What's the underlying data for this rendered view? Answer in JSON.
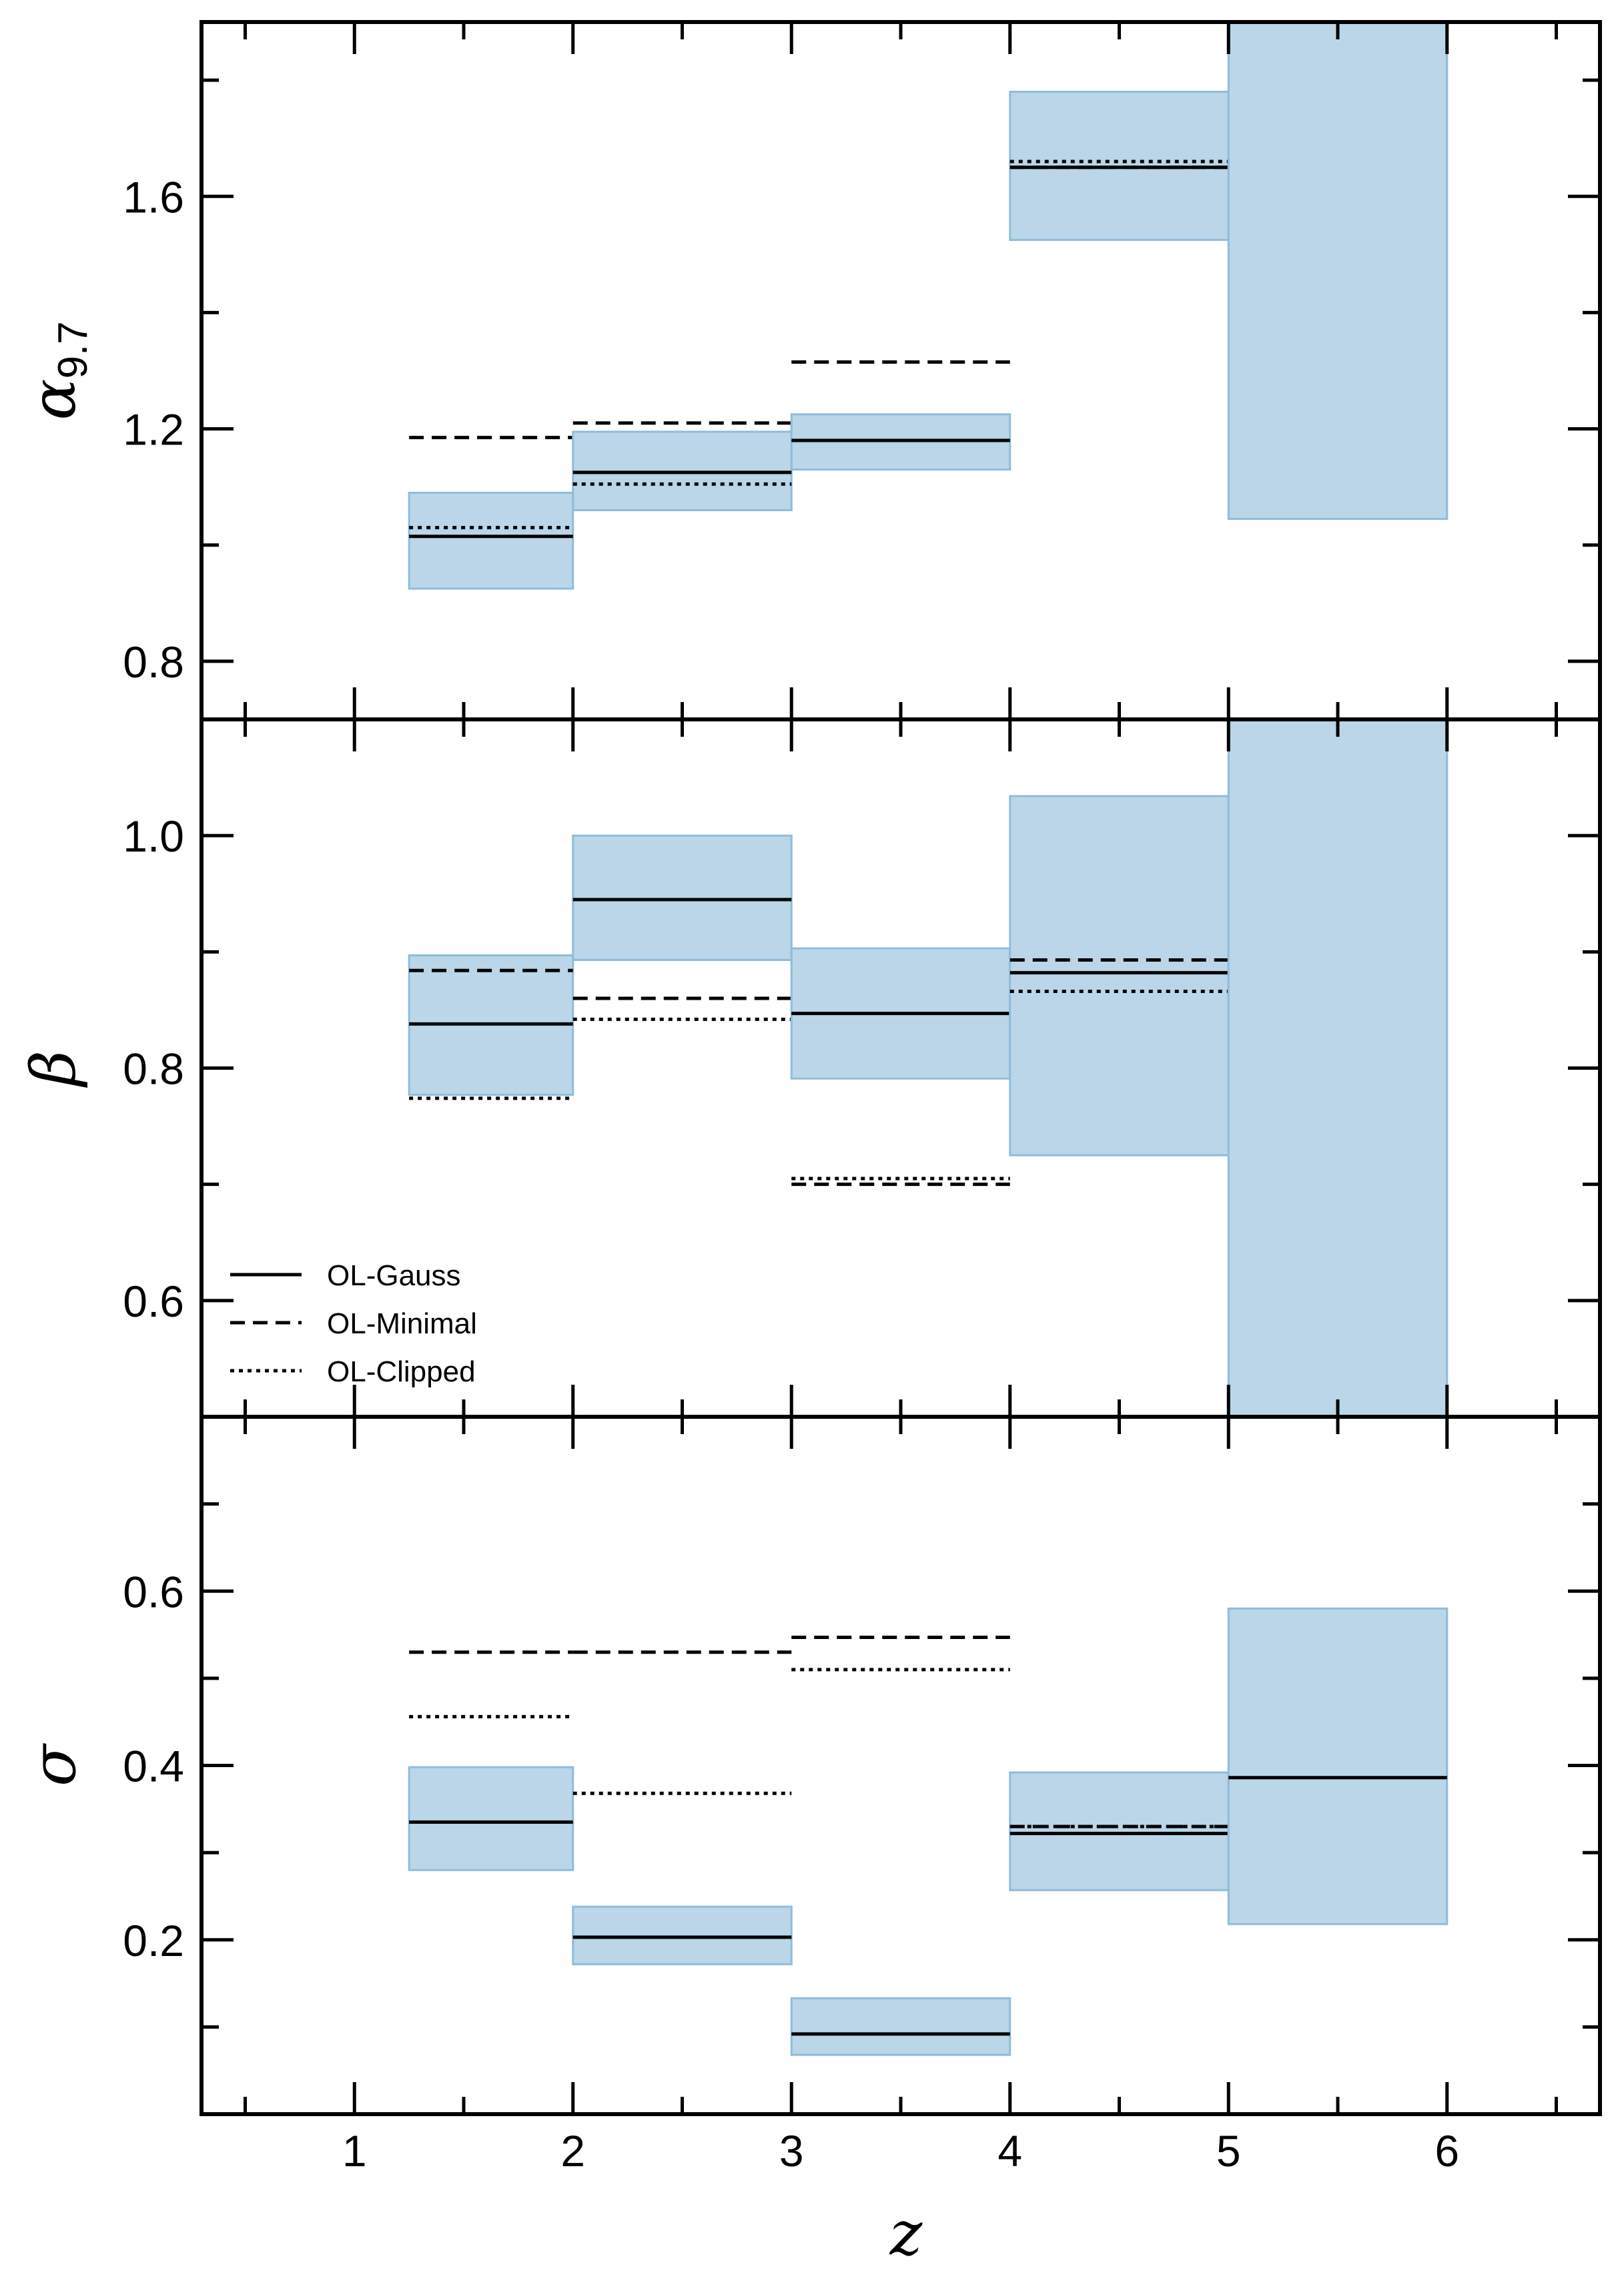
{
  "chart_data": {
    "type": "step",
    "xlabel": "z",
    "xlim": [
      0.3,
      6.7
    ],
    "x_ticks": [
      1,
      2,
      3,
      4,
      5,
      6
    ],
    "colors": {
      "band_fill": "#bad6e8",
      "band_edge": "#8fbcdb",
      "line": "#000000"
    },
    "legend": {
      "placement": "lower-left of middle panel",
      "entries": [
        {
          "label": "OL-Gauss",
          "style": "solid"
        },
        {
          "label": "OL-Minimal",
          "style": "dashed"
        },
        {
          "label": "OL-Clipped",
          "style": "dotted"
        }
      ]
    },
    "panels": [
      {
        "ylabel": "α",
        "ylabel_sub": "9.7",
        "ylim": [
          0.7,
          1.9
        ],
        "y_ticks": [
          0.8,
          1.2,
          1.6
        ],
        "y_tick_labels": [
          "0.8",
          "1.2",
          "1.6"
        ],
        "bins": [
          {
            "x0": 1.25,
            "x1": 2,
            "lo": 0.925,
            "hi": 1.09,
            "gauss": 1.015,
            "minimal": 1.185,
            "clipped": 1.03
          },
          {
            "x0": 2,
            "x1": 3,
            "lo": 1.06,
            "hi": 1.195,
            "gauss": 1.125,
            "minimal": 1.21,
            "clipped": 1.105
          },
          {
            "x0": 3,
            "x1": 4,
            "lo": 1.13,
            "hi": 1.225,
            "gauss": 1.18,
            "minimal": 1.315,
            "clipped": null
          },
          {
            "x0": 4,
            "x1": 5,
            "lo": 1.525,
            "hi": 1.78,
            "gauss": 1.65,
            "minimal": 1.65,
            "clipped": 1.66
          },
          {
            "x0": 5,
            "x1": 6,
            "lo": 1.045,
            "hi": 1.9,
            "gauss": null,
            "minimal": null,
            "clipped": null
          }
        ]
      },
      {
        "ylabel": "β",
        "ylabel_sub": "",
        "ylim": [
          0.5,
          1.1
        ],
        "y_ticks": [
          0.6,
          0.8,
          1.0
        ],
        "y_tick_labels": [
          "0.6",
          "0.8",
          "1.0"
        ],
        "bins": [
          {
            "x0": 1.25,
            "x1": 2,
            "lo": 0.777,
            "hi": 0.897,
            "gauss": 0.838,
            "minimal": 0.884,
            "clipped": 0.774
          },
          {
            "x0": 2,
            "x1": 3,
            "lo": 0.893,
            "hi": 1.0,
            "gauss": 0.945,
            "minimal": 0.86,
            "clipped": 0.842
          },
          {
            "x0": 3,
            "x1": 4,
            "lo": 0.791,
            "hi": 0.903,
            "gauss": 0.847,
            "minimal": 0.7,
            "clipped": 0.705
          },
          {
            "x0": 4,
            "x1": 5,
            "lo": 0.725,
            "hi": 1.034,
            "gauss": 0.882,
            "minimal": 0.893,
            "clipped": 0.866
          },
          {
            "x0": 5,
            "x1": 6,
            "lo": 0.5,
            "hi": 1.1,
            "gauss": null,
            "minimal": null,
            "clipped": null
          }
        ]
      },
      {
        "ylabel": "σ",
        "ylabel_sub": "",
        "ylim": [
          0.0,
          0.8
        ],
        "y_ticks": [
          0.2,
          0.4,
          0.6
        ],
        "y_tick_labels": [
          "0.2",
          "0.4",
          "0.6"
        ],
        "bins": [
          {
            "x0": 1.25,
            "x1": 2,
            "lo": 0.28,
            "hi": 0.398,
            "gauss": 0.335,
            "minimal": 0.53,
            "clipped": 0.456
          },
          {
            "x0": 2,
            "x1": 3,
            "lo": 0.172,
            "hi": 0.238,
            "gauss": 0.203,
            "minimal": 0.53,
            "clipped": 0.368
          },
          {
            "x0": 3,
            "x1": 4,
            "lo": 0.068,
            "hi": 0.133,
            "gauss": 0.092,
            "minimal": 0.547,
            "clipped": 0.51
          },
          {
            "x0": 4,
            "x1": 5,
            "lo": 0.257,
            "hi": 0.392,
            "gauss": 0.322,
            "minimal": 0.33,
            "clipped": 0.33
          },
          {
            "x0": 5,
            "x1": 6,
            "lo": 0.218,
            "hi": 0.58,
            "gauss": 0.386,
            "minimal": null,
            "clipped": null
          }
        ]
      }
    ]
  }
}
